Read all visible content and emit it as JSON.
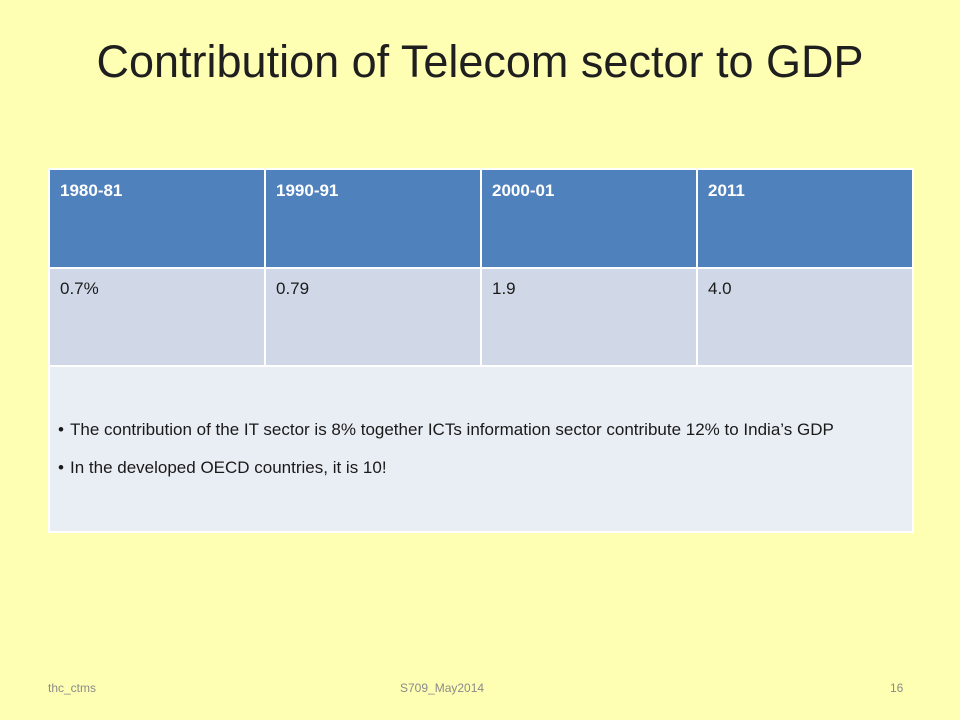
{
  "slide": {
    "title": "Contribution of  Telecom  sector  to GDP"
  },
  "table": {
    "headers": [
      "1980-81",
      "1990-91",
      "2000-01",
      "2011"
    ],
    "values": [
      "0.7%",
      "0.79",
      "1.9",
      "4.0"
    ],
    "notes": [
      "The contribution of the  IT sector is 8% together ICTs  information sector contribute 12% to India’s GDP",
      "In the  developed OECD countries, it is 10!"
    ]
  },
  "footer": {
    "left": "thc_ctms",
    "center": "S709_May2014",
    "page_number": "16"
  },
  "colors": {
    "background": "#ffffb3",
    "header_fill": "#4f81bd",
    "value_fill": "#d0d8e8",
    "notes_fill": "#e9edf4"
  }
}
